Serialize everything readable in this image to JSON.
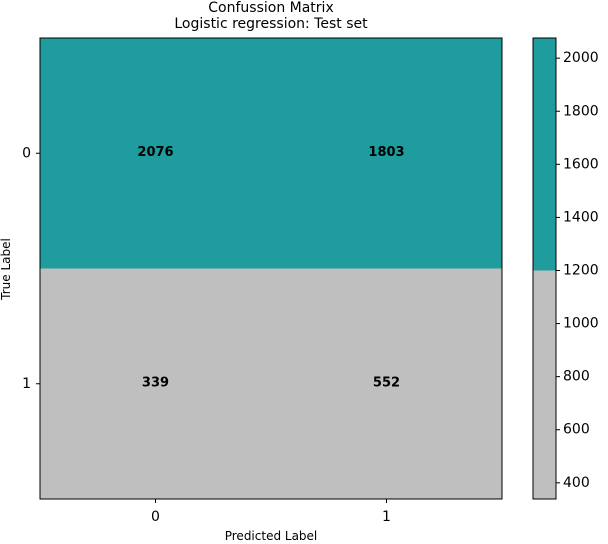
{
  "chart_data": {
    "type": "heatmap",
    "title": "Confussion Matrix",
    "subtitle": "Logistic regression: Test set",
    "xlabel": "Predicted Label",
    "ylabel": "True Label",
    "x_categories": [
      "0",
      "1"
    ],
    "y_categories": [
      "0",
      "1"
    ],
    "values": [
      [
        2076,
        1803
      ],
      [
        339,
        552
      ]
    ],
    "threshold": 1200,
    "colors": {
      "low": "#bfbfbf",
      "high": "#1e9c9e"
    },
    "colorbar": {
      "range": [
        339,
        2076
      ],
      "ticks": [
        400,
        600,
        800,
        1000,
        1200,
        1400,
        1600,
        1800,
        2000
      ],
      "tick_labels": [
        "400",
        "600",
        "800",
        "1000",
        "1200",
        "1400",
        "1600",
        "1800",
        "2000"
      ]
    },
    "grid": false
  }
}
